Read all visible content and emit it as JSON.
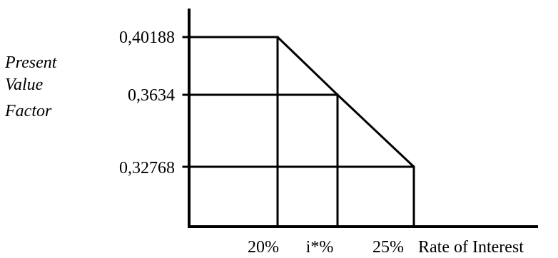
{
  "chart_data": {
    "type": "line",
    "ylabel_lines": [
      "Present",
      "Value",
      "Factor"
    ],
    "xlabel": "Rate of Interest",
    "x_ticks": [
      {
        "label": "20%",
        "value": 20
      },
      {
        "label": "i*%",
        "value": 22.1
      },
      {
        "label": "25%",
        "value": 25
      }
    ],
    "y_ticks": [
      {
        "label": "0,40188",
        "value": 0.40188
      },
      {
        "label": "0,3634",
        "value": 0.3634
      },
      {
        "label": "0,32768",
        "value": 0.32768
      }
    ],
    "points": [
      {
        "x": 20,
        "y": 0.40188
      },
      {
        "x": 22.1,
        "y": 0.3634
      },
      {
        "x": 25,
        "y": 0.32768
      }
    ],
    "grid": true,
    "colors": {
      "line": "#000000",
      "background": "#ffffff"
    }
  }
}
